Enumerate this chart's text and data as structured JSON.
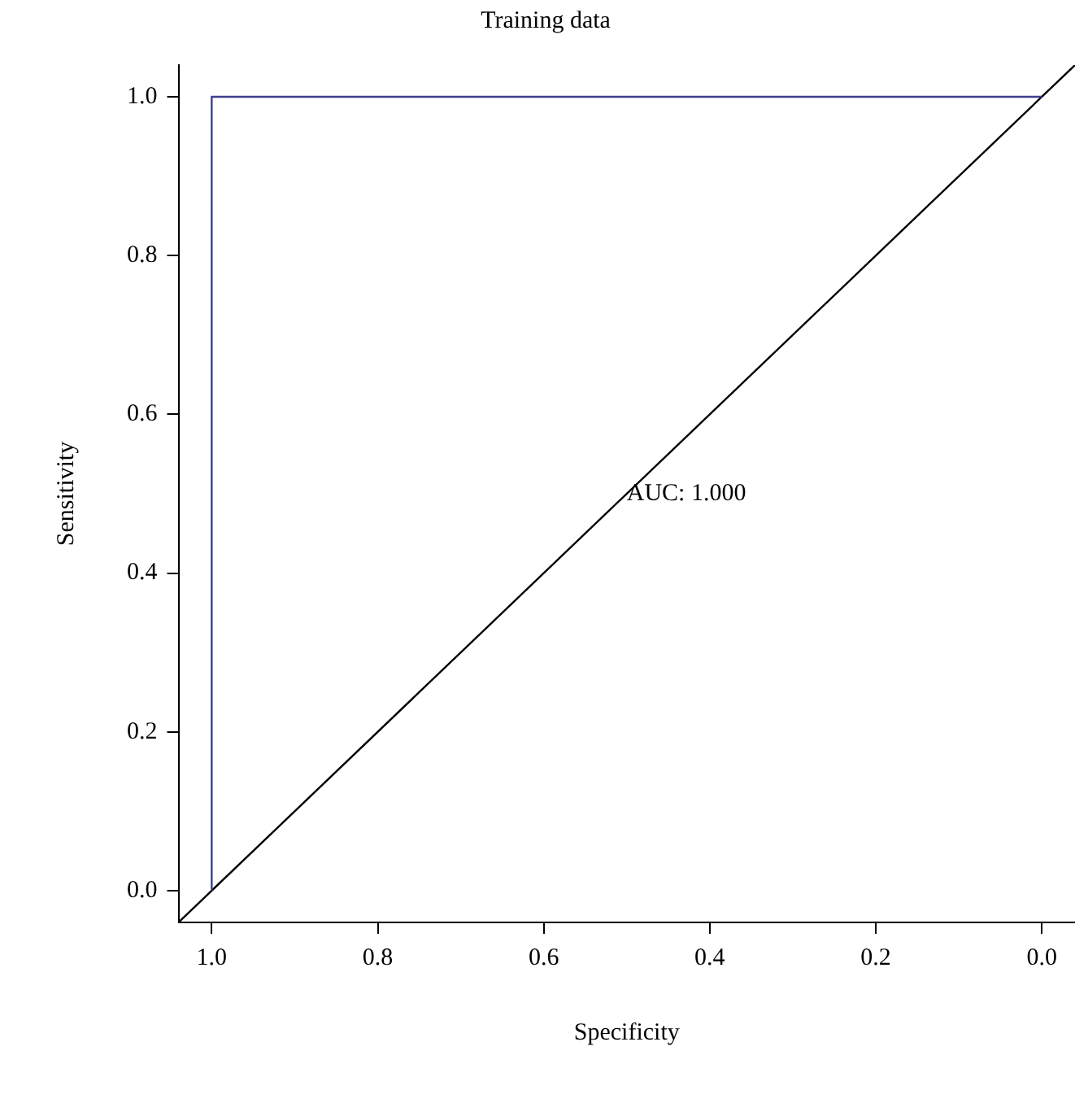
{
  "chart_data": {
    "type": "line",
    "title": "Training data",
    "xlabel": "Specificity",
    "ylabel": "Sensitivity",
    "series": [
      {
        "color": "#3f3f8f",
        "x": [
          1,
          1,
          0
        ],
        "values": [
          0,
          1,
          1
        ]
      },
      {
        "color": "#000000",
        "x": [
          1.04,
          -0.04
        ],
        "values": [
          -0.04,
          1.04
        ]
      }
    ],
    "xlim": [
      1.04,
      -0.04
    ],
    "ylim": [
      -0.04,
      1.04
    ],
    "xticks": [
      {
        "value": 1,
        "label": "1.0"
      },
      {
        "value": 0.8,
        "label": "0.8"
      },
      {
        "value": 0.6,
        "label": "0.6"
      },
      {
        "value": 0.4,
        "label": "0.4"
      },
      {
        "value": 0.2,
        "label": "0.2"
      },
      {
        "value": 0,
        "label": "0.0"
      }
    ],
    "yticks": [
      {
        "value": 0,
        "label": "0.0"
      },
      {
        "value": 0.2,
        "label": "0.2"
      },
      {
        "value": 0.4,
        "label": "0.4"
      },
      {
        "value": 0.6,
        "label": "0.6"
      },
      {
        "value": 0.8,
        "label": "0.8"
      },
      {
        "value": 1,
        "label": "1.0"
      }
    ],
    "annotations": [
      {
        "text": "AUC: 1.000",
        "x": 0.5,
        "y": 0.5
      }
    ],
    "grid": false,
    "legend": false,
    "marker": "none",
    "line_style": "solid"
  }
}
